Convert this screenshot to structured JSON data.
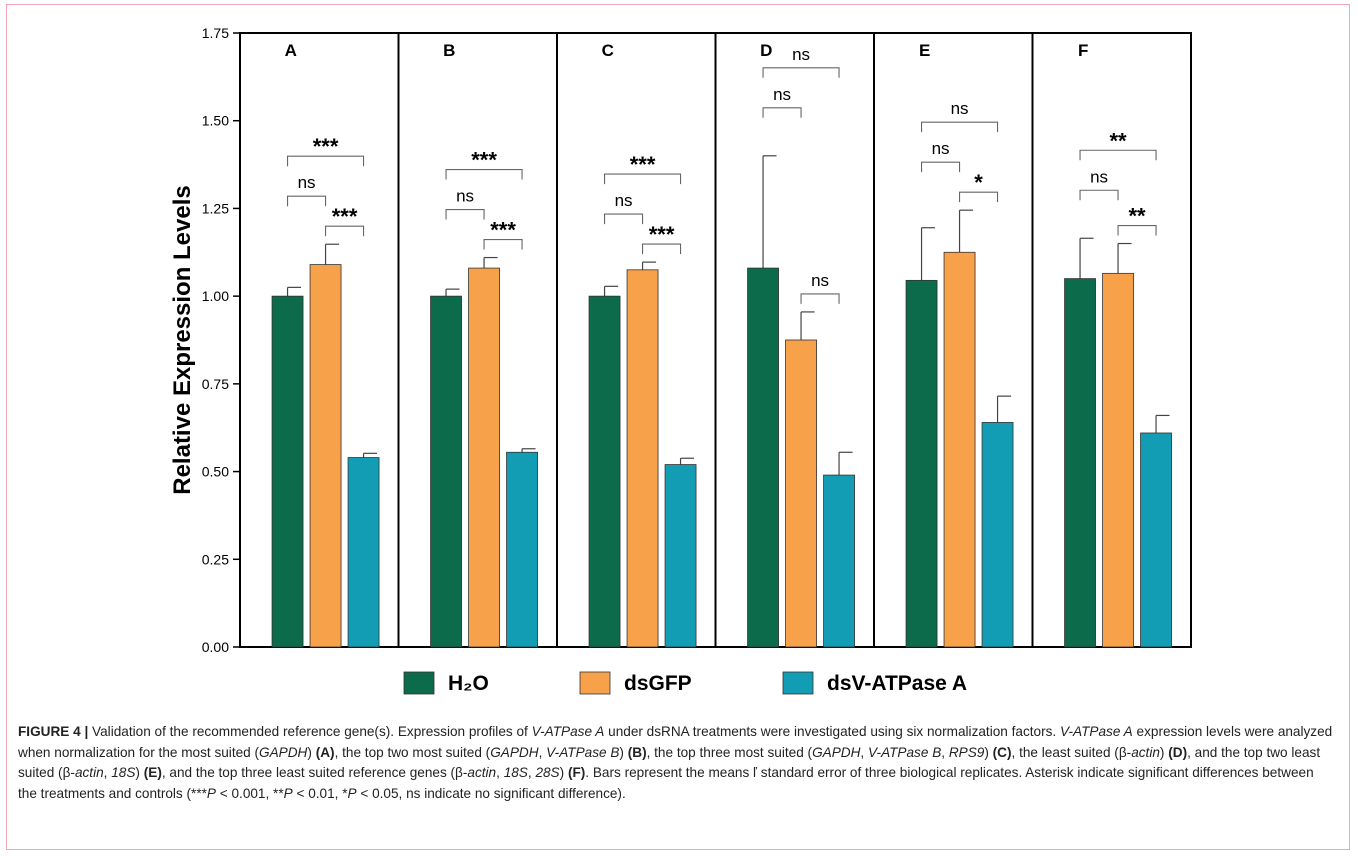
{
  "chart_data": {
    "type": "bar",
    "ylabel": "Relative Expression Levels",
    "ylim": [
      0,
      1.75
    ],
    "yticks": [
      "0.00",
      "0.25",
      "0.50",
      "0.75",
      "1.00",
      "1.25",
      "1.50",
      "1.75"
    ],
    "grid": false,
    "legend_position": "bottom",
    "panels": [
      {
        "label": "A",
        "values": [
          1.0,
          1.09,
          0.54
        ],
        "errors": [
          0.025,
          0.058,
          0.012
        ],
        "comparisons": [
          {
            "pair": [
              0,
              1
            ],
            "text": "ns"
          },
          {
            "pair": [
              1,
              2
            ],
            "text": "***"
          },
          {
            "pair": [
              0,
              2
            ],
            "text": "***"
          }
        ]
      },
      {
        "label": "B",
        "values": [
          1.0,
          1.08,
          0.555
        ],
        "errors": [
          0.02,
          0.03,
          0.01
        ],
        "comparisons": [
          {
            "pair": [
              0,
              1
            ],
            "text": "ns"
          },
          {
            "pair": [
              1,
              2
            ],
            "text": "***"
          },
          {
            "pair": [
              0,
              2
            ],
            "text": "***"
          }
        ]
      },
      {
        "label": "C",
        "values": [
          1.0,
          1.075,
          0.52
        ],
        "errors": [
          0.028,
          0.022,
          0.018
        ],
        "comparisons": [
          {
            "pair": [
              0,
              1
            ],
            "text": "ns"
          },
          {
            "pair": [
              1,
              2
            ],
            "text": "***"
          },
          {
            "pair": [
              0,
              2
            ],
            "text": "***"
          }
        ]
      },
      {
        "label": "D",
        "values": [
          1.08,
          0.875,
          0.49
        ],
        "errors": [
          0.32,
          0.08,
          0.065
        ],
        "comparisons": [
          {
            "pair": [
              0,
              1
            ],
            "text": "ns"
          },
          {
            "pair": [
              1,
              2
            ],
            "text": "ns"
          },
          {
            "pair": [
              0,
              2
            ],
            "text": "ns"
          }
        ]
      },
      {
        "label": "E",
        "values": [
          1.045,
          1.125,
          0.64
        ],
        "errors": [
          0.15,
          0.12,
          0.075
        ],
        "comparisons": [
          {
            "pair": [
              0,
              1
            ],
            "text": "ns"
          },
          {
            "pair": [
              1,
              2
            ],
            "text": "*"
          },
          {
            "pair": [
              0,
              2
            ],
            "text": "ns"
          }
        ]
      },
      {
        "label": "F",
        "values": [
          1.05,
          1.065,
          0.61
        ],
        "errors": [
          0.115,
          0.085,
          0.05
        ],
        "comparisons": [
          {
            "pair": [
              0,
              1
            ],
            "text": "ns"
          },
          {
            "pair": [
              1,
              2
            ],
            "text": "**"
          },
          {
            "pair": [
              0,
              2
            ],
            "text": "**"
          }
        ]
      }
    ],
    "series": [
      {
        "name": "H₂O",
        "color": "#0b6b4a"
      },
      {
        "name": "dsGFP",
        "color": "#f7a24a"
      },
      {
        "name": "dsV-ATPase A",
        "color": "#129db5"
      }
    ]
  },
  "caption": {
    "label": "FIGURE 4 |",
    "text_html": " Validation of the recommended reference gene(s). Expression profiles of <i>V-ATPase A</i> under dsRNA treatments were investigated using six normalization factors. <i>V-ATPase A</i> expression levels were analyzed when normalization for the most suited (<i>GAPDH</i>) <b>(A)</b>, the top two most suited (<i>GAPDH</i>, <i>V-ATPase B</i>) <b>(B)</b>, the top three most suited (<i>GAPDH</i>, <i>V-ATPase B</i>, <i>RPS9</i>) <b>(C)</b>, the least suited (β-<i>actin</i>) <b>(D)</b>, and the top two least suited (β-<i>actin</i>, <i>18S</i>) <b>(E)</b>, and the top three least suited reference genes (β-<i>actin</i>, <i>18S</i>, <i>28S</i>) <b>(F)</b>. Bars represent the means ľ standard error of three biological replicates. Asterisk indicate significant differences between the treatments and controls (***<i>P</i> &lt; 0.001, **<i>P</i> &lt; 0.01, *<i>P</i> &lt; 0.05, ns indicate no significant difference)."
  }
}
